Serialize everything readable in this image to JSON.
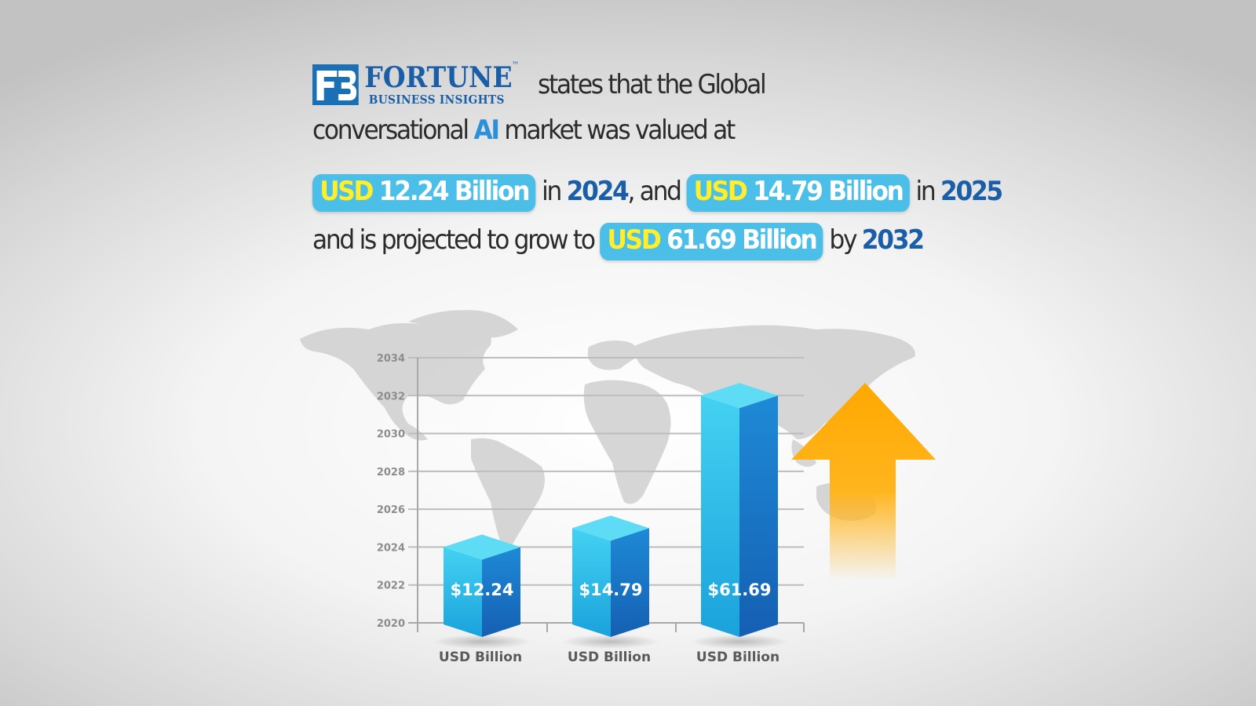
{
  "logo": {
    "brand": "FORTUNE",
    "tm": "™",
    "sub": "BUSINESS INSIGHTS",
    "mark_color": "#1a6fb5"
  },
  "headline": {
    "line1": "states that the Global",
    "line2_pre": "conversational ",
    "line2_ai": "AI",
    "line2_post": " market was valued at",
    "pill1_cur": "USD",
    "pill1_val": " 12.24 Billion",
    "mid1": " in ",
    "year1": "2024",
    "mid2": ", and ",
    "pill2_cur": "USD",
    "pill2_val": " 14.79 Billion",
    "mid3": " in ",
    "year2": "2025",
    "line4_pre": "and is projected to grow to ",
    "pill3_cur": "USD",
    "pill3_val": " 61.69 Billion",
    "line4_mid": " by ",
    "year3": "2032"
  },
  "chart_data": {
    "type": "bar",
    "title": "",
    "y_ticks": [
      "2020",
      "2022",
      "2024",
      "2026",
      "2028",
      "2030",
      "2032",
      "2034"
    ],
    "ylim": [
      2020,
      2034
    ],
    "categories": [
      "USD Billion",
      "USD Billion",
      "USD Billion"
    ],
    "bars": [
      {
        "value_label": "$12.24",
        "value": 12.24,
        "year": 2024
      },
      {
        "value_label": "$14.79",
        "value": 14.79,
        "year": 2025
      },
      {
        "value_label": "$61.69",
        "value": 61.69,
        "year": 2032
      }
    ],
    "grid": true,
    "colors": {
      "bar_front": "#29b6e6",
      "bar_side": "#1a78c9",
      "bar_top": "#5fdcf5",
      "arrow": "#ffaa00",
      "grid": "#bdbdbd"
    }
  }
}
